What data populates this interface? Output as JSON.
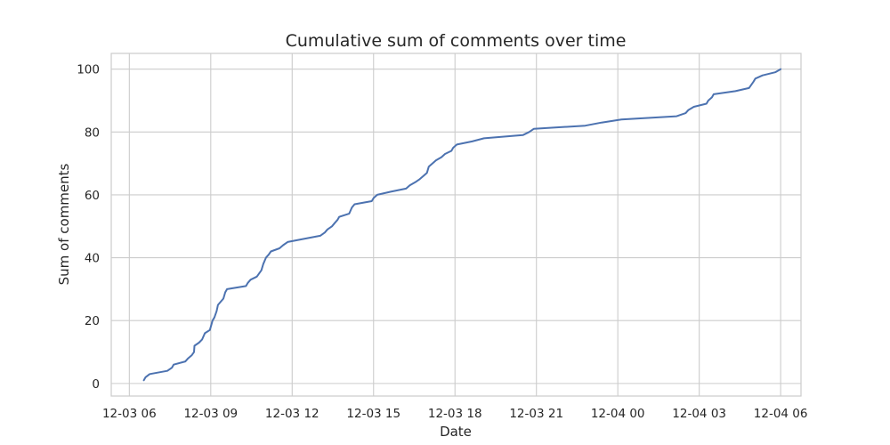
{
  "chart_data": {
    "type": "line",
    "title": "Cumulative sum of comments over time",
    "xlabel": "Date",
    "ylabel": "Sum of comments",
    "xlim": [
      "2023-12-03 05:20",
      "2023-12-04 06:45"
    ],
    "ylim": [
      -4,
      105
    ],
    "x_ticks": [
      {
        "value": "2023-12-03 06:00",
        "label": "12-03 06"
      },
      {
        "value": "2023-12-03 09:00",
        "label": "12-03 09"
      },
      {
        "value": "2023-12-03 12:00",
        "label": "12-03 12"
      },
      {
        "value": "2023-12-03 15:00",
        "label": "12-03 15"
      },
      {
        "value": "2023-12-03 18:00",
        "label": "12-03 18"
      },
      {
        "value": "2023-12-03 21:00",
        "label": "12-03 21"
      },
      {
        "value": "2023-12-04 00:00",
        "label": "12-04 00"
      },
      {
        "value": "2023-12-04 03:00",
        "label": "12-04 03"
      },
      {
        "value": "2023-12-04 06:00",
        "label": "12-04 06"
      }
    ],
    "y_ticks": [
      0,
      20,
      40,
      60,
      80,
      100
    ],
    "grid": true,
    "legend": "none",
    "series": [
      {
        "color": "#4c72b0",
        "points": [
          [
            "2023-12-03 06:32",
            1
          ],
          [
            "2023-12-03 06:36",
            2
          ],
          [
            "2023-12-03 06:45",
            3
          ],
          [
            "2023-12-03 07:24",
            4
          ],
          [
            "2023-12-03 07:34",
            5
          ],
          [
            "2023-12-03 07:38",
            6
          ],
          [
            "2023-12-03 08:04",
            7
          ],
          [
            "2023-12-03 08:10",
            8
          ],
          [
            "2023-12-03 08:18",
            9
          ],
          [
            "2023-12-03 08:23",
            10
          ],
          [
            "2023-12-03 08:24",
            12
          ],
          [
            "2023-12-03 08:34",
            13
          ],
          [
            "2023-12-03 08:41",
            14
          ],
          [
            "2023-12-03 08:47",
            16
          ],
          [
            "2023-12-03 08:58",
            17
          ],
          [
            "2023-12-03 09:02",
            19
          ],
          [
            "2023-12-03 09:04",
            20
          ],
          [
            "2023-12-03 09:08",
            21
          ],
          [
            "2023-12-03 09:13",
            23
          ],
          [
            "2023-12-03 09:16",
            25
          ],
          [
            "2023-12-03 09:22",
            26
          ],
          [
            "2023-12-03 09:28",
            27
          ],
          [
            "2023-12-03 09:32",
            29
          ],
          [
            "2023-12-03 09:36",
            30
          ],
          [
            "2023-12-03 10:18",
            31
          ],
          [
            "2023-12-03 10:22",
            32
          ],
          [
            "2023-12-03 10:28",
            33
          ],
          [
            "2023-12-03 10:42",
            34
          ],
          [
            "2023-12-03 10:52",
            36
          ],
          [
            "2023-12-03 10:56",
            38
          ],
          [
            "2023-12-03 11:02",
            40
          ],
          [
            "2023-12-03 11:08",
            41
          ],
          [
            "2023-12-03 11:13",
            42
          ],
          [
            "2023-12-03 11:32",
            43
          ],
          [
            "2023-12-03 11:40",
            44
          ],
          [
            "2023-12-03 11:50",
            45
          ],
          [
            "2023-12-03 13:02",
            47
          ],
          [
            "2023-12-03 13:12",
            48
          ],
          [
            "2023-12-03 13:18",
            49
          ],
          [
            "2023-12-03 13:28",
            50
          ],
          [
            "2023-12-03 13:34",
            51
          ],
          [
            "2023-12-03 13:40",
            52
          ],
          [
            "2023-12-03 13:44",
            53
          ],
          [
            "2023-12-03 14:06",
            54
          ],
          [
            "2023-12-03 14:12",
            56
          ],
          [
            "2023-12-03 14:18",
            57
          ],
          [
            "2023-12-03 14:56",
            58
          ],
          [
            "2023-12-03 15:00",
            59
          ],
          [
            "2023-12-03 15:08",
            60
          ],
          [
            "2023-12-03 15:38",
            61
          ],
          [
            "2023-12-03 16:12",
            62
          ],
          [
            "2023-12-03 16:20",
            63
          ],
          [
            "2023-12-03 16:32",
            64
          ],
          [
            "2023-12-03 16:42",
            65
          ],
          [
            "2023-12-03 16:50",
            66
          ],
          [
            "2023-12-03 16:58",
            67
          ],
          [
            "2023-12-03 17:02",
            69
          ],
          [
            "2023-12-03 17:18",
            71
          ],
          [
            "2023-12-03 17:30",
            72
          ],
          [
            "2023-12-03 17:38",
            73
          ],
          [
            "2023-12-03 17:52",
            74
          ],
          [
            "2023-12-03 17:56",
            75
          ],
          [
            "2023-12-03 18:04",
            76
          ],
          [
            "2023-12-03 18:38",
            77
          ],
          [
            "2023-12-03 19:04",
            78
          ],
          [
            "2023-12-03 20:30",
            79
          ],
          [
            "2023-12-03 20:44",
            80
          ],
          [
            "2023-12-03 20:54",
            81
          ],
          [
            "2023-12-03 22:48",
            82
          ],
          [
            "2023-12-03 23:24",
            83
          ],
          [
            "2023-12-04 00:08",
            84
          ],
          [
            "2023-12-04 02:10",
            85
          ],
          [
            "2023-12-04 02:30",
            86
          ],
          [
            "2023-12-04 02:36",
            87
          ],
          [
            "2023-12-04 02:48",
            88
          ],
          [
            "2023-12-04 03:16",
            89
          ],
          [
            "2023-12-04 03:20",
            90
          ],
          [
            "2023-12-04 03:28",
            91
          ],
          [
            "2023-12-04 03:32",
            92
          ],
          [
            "2023-12-04 04:20",
            93
          ],
          [
            "2023-12-04 04:50",
            94
          ],
          [
            "2023-12-04 05:00",
            96
          ],
          [
            "2023-12-04 05:04",
            97
          ],
          [
            "2023-12-04 05:20",
            98
          ],
          [
            "2023-12-04 05:48",
            99
          ],
          [
            "2023-12-04 06:00",
            100
          ]
        ]
      }
    ]
  }
}
